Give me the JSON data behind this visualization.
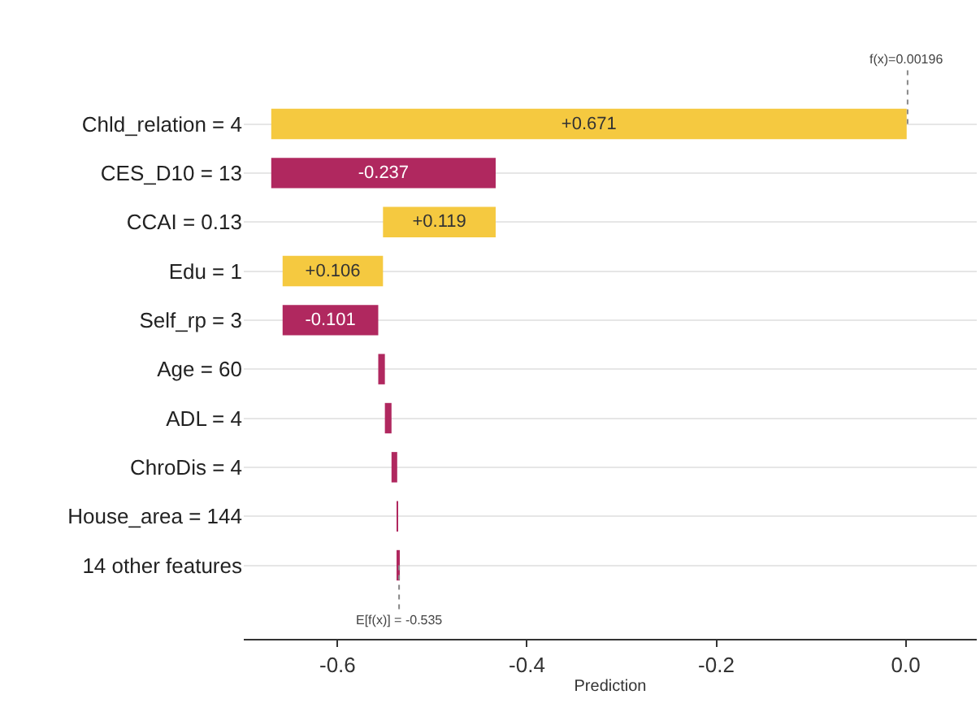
{
  "chart_data": {
    "type": "bar",
    "orientation": "horizontal",
    "categories": [
      "Chld_relation = 4",
      "CES_D10 = 13",
      "CCAI = 0.13",
      "Edu = 1",
      "Self_rp = 3",
      "Age = 60",
      "ADL = 4",
      "ChroDis = 4",
      "House_area = 144",
      "14 other features"
    ],
    "values": [
      0.671,
      -0.237,
      0.119,
      0.106,
      -0.101,
      -0.007,
      -0.007,
      -0.006,
      -0.001,
      -0.001
    ],
    "base": [
      -0.67,
      -0.433,
      -0.552,
      -0.658,
      -0.557,
      -0.55,
      -0.543,
      -0.537,
      -0.536,
      -0.535
    ],
    "colors": [
      "#f5c940",
      "#b0285f",
      "#f5c940",
      "#f5c940",
      "#b0285f",
      "#b0285f",
      "#b0285f",
      "#b0285f",
      "#b0285f",
      "#b0285f"
    ],
    "value_labels": [
      "+0.671",
      "-0.237",
      "+0.119",
      "+0.106",
      "-0.101",
      null,
      null,
      null,
      null,
      null
    ],
    "xlabel": "Prediction",
    "xlim": [
      -0.699,
      0.075
    ],
    "xticks": [
      {
        "value": -0.6,
        "label": "-0.6"
      },
      {
        "value": -0.4,
        "label": "-0.4"
      },
      {
        "value": -0.2,
        "label": "-0.2"
      },
      {
        "value": 0,
        "label": "0.0"
      }
    ],
    "ref_lines": [
      {
        "axis": "x",
        "value": 0.00196,
        "label": "f(x)=0.00196",
        "line_style": "dotted"
      },
      {
        "axis": "x",
        "value": -0.535,
        "label": "E[f(x)] = -0.535",
        "line_style": "dotted"
      }
    ],
    "grid": "y"
  }
}
